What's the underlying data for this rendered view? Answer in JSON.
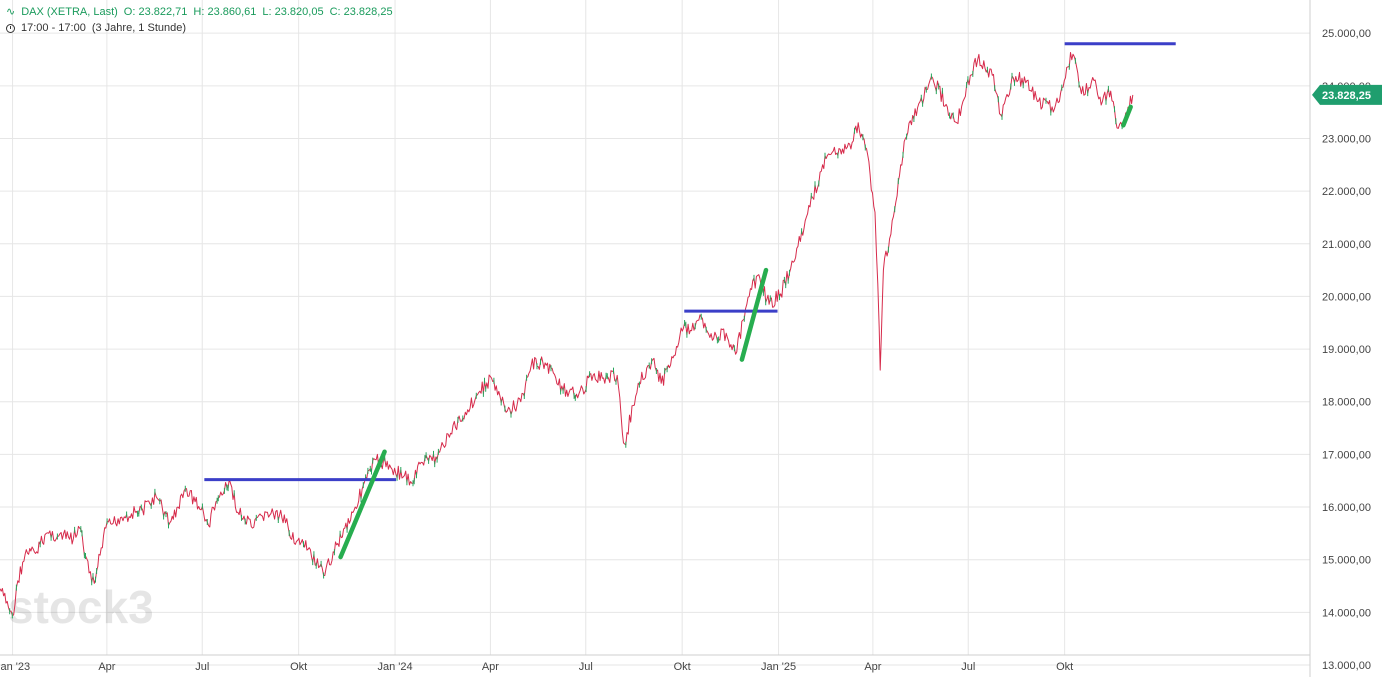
{
  "legend": {
    "symbol": "DAX (XETRA, Last)",
    "open_label": "O: 23.822,71",
    "high_label": "H: 23.860,61",
    "low_label": "L: 23.820,05",
    "close_label": "C: 23.828,25",
    "session": "17:00 - 17:00",
    "range": "(3 Jahre, 1 Stunde)"
  },
  "watermark": "stock3",
  "colors": {
    "price_line": "#d62b4b",
    "price_up": "#26a55c",
    "highlight_green": "#27ad4f",
    "level_line": "#3b3fc8",
    "grid": "#e6e6e6",
    "last_price_badge": "#1f9e6e",
    "axis_text": "#444444"
  },
  "chart_data": {
    "type": "line",
    "title": "DAX (XETRA, Last)",
    "xlabel": "",
    "ylabel": "",
    "ylim": [
      13000,
      25250
    ],
    "xlim": [
      "2022-12-20",
      "2025-12-31"
    ],
    "y_ticks": [
      "13.000,00",
      "14.000,00",
      "15.000,00",
      "16.000,00",
      "17.000,00",
      "18.000,00",
      "19.000,00",
      "20.000,00",
      "21.000,00",
      "22.000,00",
      "23.000,00",
      "24.000,00",
      "25.000,00"
    ],
    "y_tick_values": [
      13000,
      14000,
      15000,
      16000,
      17000,
      18000,
      19000,
      20000,
      21000,
      22000,
      23000,
      24000,
      25000
    ],
    "x_ticks": [
      {
        "label": "Jan '23",
        "date": "2023-01-01"
      },
      {
        "label": "Apr",
        "date": "2023-04-01"
      },
      {
        "label": "Jul",
        "date": "2023-07-01"
      },
      {
        "label": "Okt",
        "date": "2023-10-01"
      },
      {
        "label": "Jan '24",
        "date": "2024-01-01"
      },
      {
        "label": "Apr",
        "date": "2024-04-01"
      },
      {
        "label": "Jul",
        "date": "2024-07-01"
      },
      {
        "label": "Okt",
        "date": "2024-10-01"
      },
      {
        "label": "Jan '25",
        "date": "2025-01-01"
      },
      {
        "label": "Apr",
        "date": "2025-04-01"
      },
      {
        "label": "Jul",
        "date": "2025-07-01"
      },
      {
        "label": "Okt",
        "date": "2025-10-01"
      }
    ],
    "last_price": 23828.25,
    "last_price_label": "23.828,25",
    "series": [
      {
        "values": [
          [
            "2022-12-20",
            14450
          ],
          [
            "2022-12-28",
            14100
          ],
          [
            "2023-01-02",
            13950
          ],
          [
            "2023-01-06",
            14600
          ],
          [
            "2023-01-13",
            15100
          ],
          [
            "2023-01-24",
            15150
          ],
          [
            "2023-02-02",
            15500
          ],
          [
            "2023-02-14",
            15450
          ],
          [
            "2023-02-28",
            15400
          ],
          [
            "2023-03-06",
            15600
          ],
          [
            "2023-03-15",
            14750
          ],
          [
            "2023-03-20",
            14550
          ],
          [
            "2023-03-31",
            15600
          ],
          [
            "2023-04-14",
            15800
          ],
          [
            "2023-04-28",
            15900
          ],
          [
            "2023-05-05",
            15950
          ],
          [
            "2023-05-18",
            16200
          ],
          [
            "2023-05-31",
            15700
          ],
          [
            "2023-06-08",
            16000
          ],
          [
            "2023-06-16",
            16350
          ],
          [
            "2023-06-30",
            15950
          ],
          [
            "2023-07-07",
            15650
          ],
          [
            "2023-07-14",
            16100
          ],
          [
            "2023-07-28",
            16450
          ],
          [
            "2023-08-04",
            15900
          ],
          [
            "2023-08-18",
            15600
          ],
          [
            "2023-08-31",
            15900
          ],
          [
            "2023-09-15",
            15800
          ],
          [
            "2023-09-29",
            15350
          ],
          [
            "2023-10-10",
            15200
          ],
          [
            "2023-10-20",
            14850
          ],
          [
            "2023-10-26",
            14700
          ],
          [
            "2023-11-03",
            15150
          ],
          [
            "2023-11-14",
            15600
          ],
          [
            "2023-11-24",
            16000
          ],
          [
            "2023-12-05",
            16550
          ],
          [
            "2023-12-14",
            16900
          ],
          [
            "2023-12-28",
            16750
          ],
          [
            "2024-01-10",
            16600
          ],
          [
            "2024-01-17",
            16450
          ],
          [
            "2024-01-26",
            16850
          ],
          [
            "2024-02-09",
            16950
          ],
          [
            "2024-02-23",
            17400
          ],
          [
            "2024-03-08",
            17800
          ],
          [
            "2024-03-22",
            18200
          ],
          [
            "2024-04-02",
            18450
          ],
          [
            "2024-04-16",
            17800
          ],
          [
            "2024-04-30",
            18000
          ],
          [
            "2024-05-10",
            18700
          ],
          [
            "2024-05-21",
            18750
          ],
          [
            "2024-05-31",
            18550
          ],
          [
            "2024-06-14",
            18100
          ],
          [
            "2024-06-28",
            18250
          ],
          [
            "2024-07-08",
            18500
          ],
          [
            "2024-07-18",
            18450
          ],
          [
            "2024-07-31",
            18500
          ],
          [
            "2024-08-05",
            17400
          ],
          [
            "2024-08-07",
            17200
          ],
          [
            "2024-08-20",
            18350
          ],
          [
            "2024-09-03",
            18800
          ],
          [
            "2024-09-11",
            18350
          ],
          [
            "2024-09-20",
            18700
          ],
          [
            "2024-09-30",
            19400
          ],
          [
            "2024-10-10",
            19350
          ],
          [
            "2024-10-18",
            19650
          ],
          [
            "2024-10-31",
            19200
          ],
          [
            "2024-11-12",
            19300
          ],
          [
            "2024-11-21",
            18900
          ],
          [
            "2024-12-04",
            20000
          ],
          [
            "2024-12-12",
            20400
          ],
          [
            "2024-12-23",
            19850
          ],
          [
            "2025-01-03",
            20050
          ],
          [
            "2025-01-15",
            20650
          ],
          [
            "2025-01-31",
            21700
          ],
          [
            "2025-02-12",
            22500
          ],
          [
            "2025-02-20",
            22700
          ],
          [
            "2025-03-03",
            22800
          ],
          [
            "2025-03-11",
            22800
          ],
          [
            "2025-03-18",
            23300
          ],
          [
            "2025-03-27",
            22700
          ],
          [
            "2025-04-03",
            21600
          ],
          [
            "2025-04-07",
            19400
          ],
          [
            "2025-04-08",
            18600
          ],
          [
            "2025-04-11",
            20500
          ],
          [
            "2025-04-23",
            21800
          ],
          [
            "2025-05-02",
            23000
          ],
          [
            "2025-05-16",
            23700
          ],
          [
            "2025-05-28",
            24150
          ],
          [
            "2025-06-11",
            23600
          ],
          [
            "2025-06-20",
            23300
          ],
          [
            "2025-07-03",
            24200
          ],
          [
            "2025-07-10",
            24500
          ],
          [
            "2025-07-24",
            24200
          ],
          [
            "2025-08-01",
            23450
          ],
          [
            "2025-08-13",
            24150
          ],
          [
            "2025-08-26",
            24100
          ],
          [
            "2025-09-05",
            23700
          ],
          [
            "2025-09-19",
            23600
          ],
          [
            "2025-09-26",
            23700
          ],
          [
            "2025-10-03",
            24350
          ],
          [
            "2025-10-09",
            24600
          ],
          [
            "2025-10-17",
            23850
          ],
          [
            "2025-10-29",
            24100
          ],
          [
            "2025-11-06",
            23700
          ],
          [
            "2025-11-14",
            23900
          ],
          [
            "2025-11-20",
            23200
          ],
          [
            "2025-11-26",
            23300
          ],
          [
            "2025-12-05",
            23828
          ]
        ]
      }
    ],
    "annotations": {
      "horizontal_levels": [
        {
          "from": "2023-07-03",
          "to": "2024-01-02",
          "value": 16520
        },
        {
          "from": "2024-10-03",
          "to": "2024-12-31",
          "value": 19720
        },
        {
          "from": "2025-10-01",
          "to": "2026-01-15",
          "value": 24800
        }
      ],
      "trend_segments": [
        {
          "from": [
            "2023-11-10",
            15050
          ],
          "to": [
            "2023-12-22",
            17050
          ]
        },
        {
          "from": [
            "2024-11-27",
            18800
          ],
          "to": [
            "2024-12-20",
            20500
          ]
        },
        {
          "from": [
            "2025-11-26",
            23250
          ],
          "to": [
            "2025-12-03",
            23600
          ]
        }
      ]
    }
  }
}
